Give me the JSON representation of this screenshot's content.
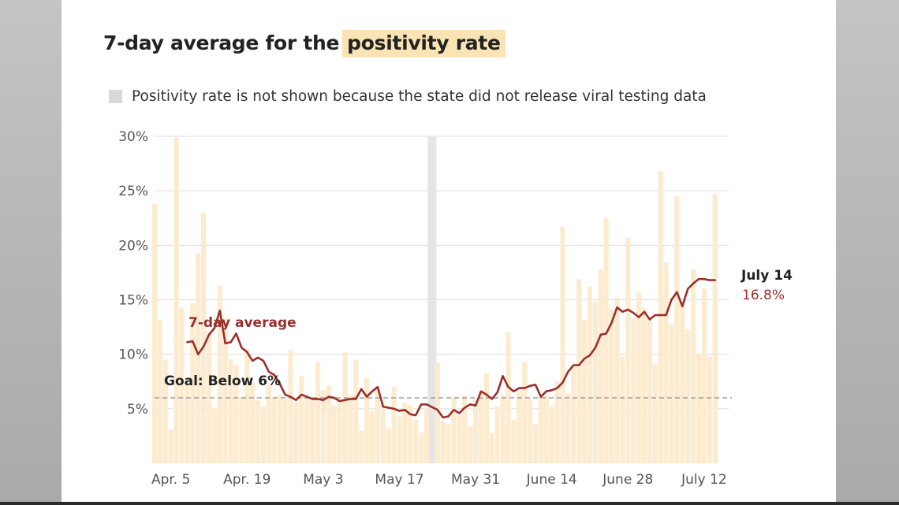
{
  "title_prefix": "7-day average for the",
  "title_highlight": "positivity rate",
  "legend": {
    "text": "Positivity rate is not shown because the state did not release viral testing data"
  },
  "colors": {
    "line": "#9a2f2c",
    "bars": "#fdebd0",
    "highlight": "#fae3b4",
    "gap": "#e5e5e5",
    "goal_line": "#8f8f8f"
  },
  "annotations": {
    "series_label": "7-day average",
    "goal_label": "Goal: Below 6%",
    "end_date": "July 14",
    "end_value": "16.8%"
  },
  "chart_data": {
    "type": "bar",
    "title": "7-day average for the positivity rate",
    "x_range": [
      "2020-04-02",
      "2020-07-14"
    ],
    "ylim": [
      0,
      30
    ],
    "yticks": [
      5,
      10,
      15,
      20,
      25,
      30
    ],
    "ytick_labels": [
      "5%",
      "10%",
      "15%",
      "20%",
      "25%",
      "30%"
    ],
    "xtick_labels": [
      "Apr. 5",
      "Apr. 19",
      "May 3",
      "May 17",
      "May 31",
      "June 14",
      "June 28",
      "July 12"
    ],
    "xtick_dates": [
      "2020-04-05",
      "2020-04-19",
      "2020-05-03",
      "2020-05-17",
      "2020-05-31",
      "2020-06-14",
      "2020-06-28",
      "2020-07-12"
    ],
    "goal": 6,
    "missing_date": "2020-05-23",
    "bars": {
      "dates": [
        "2020-04-02",
        "2020-04-03",
        "2020-04-04",
        "2020-04-05",
        "2020-04-06",
        "2020-04-07",
        "2020-04-08",
        "2020-04-09",
        "2020-04-10",
        "2020-04-11",
        "2020-04-12",
        "2020-04-13",
        "2020-04-14",
        "2020-04-15",
        "2020-04-16",
        "2020-04-17",
        "2020-04-18",
        "2020-04-19",
        "2020-04-20",
        "2020-04-21",
        "2020-04-22",
        "2020-04-23",
        "2020-04-24",
        "2020-04-25",
        "2020-04-26",
        "2020-04-27",
        "2020-04-28",
        "2020-04-29",
        "2020-04-30",
        "2020-05-01",
        "2020-05-02",
        "2020-05-03",
        "2020-05-04",
        "2020-05-05",
        "2020-05-06",
        "2020-05-07",
        "2020-05-08",
        "2020-05-09",
        "2020-05-10",
        "2020-05-11",
        "2020-05-12",
        "2020-05-13",
        "2020-05-14",
        "2020-05-15",
        "2020-05-16",
        "2020-05-17",
        "2020-05-18",
        "2020-05-19",
        "2020-05-20",
        "2020-05-21",
        "2020-05-22",
        "2020-05-24",
        "2020-05-25",
        "2020-05-26",
        "2020-05-27",
        "2020-05-28",
        "2020-05-29",
        "2020-05-30",
        "2020-05-31",
        "2020-06-01",
        "2020-06-02",
        "2020-06-03",
        "2020-06-04",
        "2020-06-05",
        "2020-06-06",
        "2020-06-07",
        "2020-06-08",
        "2020-06-09",
        "2020-06-10",
        "2020-06-11",
        "2020-06-12",
        "2020-06-13",
        "2020-06-14",
        "2020-06-15",
        "2020-06-16",
        "2020-06-17",
        "2020-06-18",
        "2020-06-19",
        "2020-06-20",
        "2020-06-21",
        "2020-06-22",
        "2020-06-23",
        "2020-06-24",
        "2020-06-25",
        "2020-06-26",
        "2020-06-27",
        "2020-06-28",
        "2020-06-29",
        "2020-06-30",
        "2020-07-01",
        "2020-07-02",
        "2020-07-03",
        "2020-07-04",
        "2020-07-05",
        "2020-07-06",
        "2020-07-07",
        "2020-07-08",
        "2020-07-09",
        "2020-07-10",
        "2020-07-11",
        "2020-07-12",
        "2020-07-13",
        "2020-07-14"
      ],
      "values": [
        23.8,
        13.1,
        9.5,
        3.1,
        29.9,
        14.3,
        7.2,
        14.7,
        19.3,
        23.0,
        12.1,
        5.1,
        16.3,
        13.3,
        9.6,
        9.0,
        6.1,
        10.5,
        7.4,
        5.8,
        5.2,
        7.2,
        6.1,
        6.3,
        5.9,
        10.4,
        5.6,
        8.0,
        6.1,
        5.8,
        9.3,
        6.7,
        7.1,
        5.3,
        5.9,
        10.2,
        6.3,
        9.5,
        3.0,
        7.8,
        4.8,
        6.9,
        5.5,
        3.2,
        7.0,
        4.3,
        5.6,
        5.3,
        4.0,
        2.8,
        5.0,
        9.2,
        3.9,
        3.6,
        6.0,
        4.4,
        6.2,
        3.4,
        5.9,
        6.6,
        8.3,
        2.8,
        5.2,
        6.3,
        12.0,
        4.0,
        6.6,
        9.3,
        5.9,
        3.6,
        6.1,
        6.2,
        5.2,
        7.5,
        21.7,
        6.4,
        8.8,
        16.9,
        13.2,
        16.2,
        14.8,
        17.8,
        22.5,
        14.1,
        15.2,
        9.8,
        20.7,
        13.4,
        15.7,
        14.2,
        13.3,
        9.1,
        26.8,
        18.4,
        12.7,
        24.5,
        14.8,
        12.3,
        17.8,
        10.0,
        16.0,
        9.8,
        24.7
      ]
    },
    "series": [
      {
        "name": "7-day average",
        "dates": [
          "2020-04-08",
          "2020-04-09",
          "2020-04-10",
          "2020-04-11",
          "2020-04-12",
          "2020-04-13",
          "2020-04-14",
          "2020-04-15",
          "2020-04-16",
          "2020-04-17",
          "2020-04-18",
          "2020-04-19",
          "2020-04-20",
          "2020-04-21",
          "2020-04-22",
          "2020-04-23",
          "2020-04-24",
          "2020-04-25",
          "2020-04-26",
          "2020-04-27",
          "2020-04-28",
          "2020-04-29",
          "2020-04-30",
          "2020-05-01",
          "2020-05-02",
          "2020-05-03",
          "2020-05-04",
          "2020-05-05",
          "2020-05-06",
          "2020-05-07",
          "2020-05-08",
          "2020-05-09",
          "2020-05-10",
          "2020-05-11",
          "2020-05-12",
          "2020-05-13",
          "2020-05-14",
          "2020-05-15",
          "2020-05-16",
          "2020-05-17",
          "2020-05-18",
          "2020-05-19",
          "2020-05-20",
          "2020-05-21",
          "2020-05-22",
          "2020-05-24",
          "2020-05-25",
          "2020-05-26",
          "2020-05-27",
          "2020-05-28",
          "2020-05-29",
          "2020-05-30",
          "2020-05-31",
          "2020-06-01",
          "2020-06-02",
          "2020-06-03",
          "2020-06-04",
          "2020-06-05",
          "2020-06-06",
          "2020-06-07",
          "2020-06-08",
          "2020-06-09",
          "2020-06-10",
          "2020-06-11",
          "2020-06-12",
          "2020-06-13",
          "2020-06-14",
          "2020-06-15",
          "2020-06-16",
          "2020-06-17",
          "2020-06-18",
          "2020-06-19",
          "2020-06-20",
          "2020-06-21",
          "2020-06-22",
          "2020-06-23",
          "2020-06-24",
          "2020-06-25",
          "2020-06-26",
          "2020-06-27",
          "2020-06-28",
          "2020-06-29",
          "2020-06-30",
          "2020-07-01",
          "2020-07-02",
          "2020-07-03",
          "2020-07-04",
          "2020-07-05",
          "2020-07-06",
          "2020-07-07",
          "2020-07-08",
          "2020-07-09",
          "2020-07-10",
          "2020-07-11",
          "2020-07-12",
          "2020-07-13",
          "2020-07-14"
        ],
        "values": [
          11.1,
          11.2,
          10.0,
          10.7,
          11.8,
          12.4,
          14.0,
          11.0,
          11.1,
          11.9,
          10.6,
          10.2,
          9.4,
          9.7,
          9.4,
          8.4,
          8.1,
          7.3,
          6.3,
          6.1,
          5.8,
          6.3,
          6.1,
          5.9,
          5.9,
          5.8,
          6.1,
          6.0,
          5.7,
          5.8,
          5.9,
          5.9,
          6.8,
          6.1,
          6.6,
          7.0,
          5.2,
          5.1,
          5.0,
          4.8,
          4.9,
          4.5,
          4.4,
          5.4,
          5.4,
          4.9,
          4.2,
          4.3,
          4.9,
          4.6,
          5.1,
          5.4,
          5.3,
          6.6,
          6.3,
          5.9,
          6.5,
          8.0,
          7.0,
          6.6,
          6.9,
          6.9,
          7.1,
          7.2,
          6.1,
          6.6,
          6.7,
          6.9,
          7.4,
          8.4,
          9.0,
          9.0,
          9.6,
          9.9,
          10.6,
          11.8,
          11.9,
          12.9,
          14.3,
          13.9,
          14.1,
          13.8,
          13.4,
          13.9,
          13.2,
          13.6,
          13.6,
          13.6,
          15.0,
          15.7,
          14.4,
          16.0,
          16.5,
          16.9,
          16.9,
          16.8,
          16.8
        ]
      }
    ]
  }
}
